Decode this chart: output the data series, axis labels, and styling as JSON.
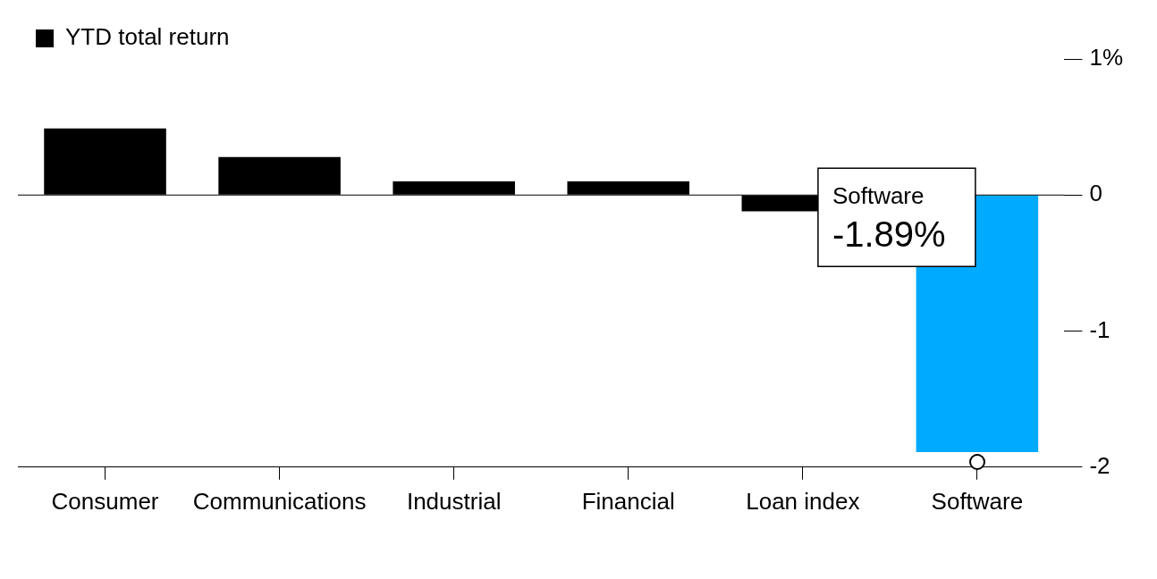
{
  "chart_data": {
    "type": "bar",
    "categories": [
      "Consumer",
      "Communications",
      "Industrial",
      "Financial",
      "Loan index",
      "Software"
    ],
    "series": [
      {
        "name": "YTD total return",
        "color": "#000000",
        "colors": [
          "#000000",
          "#000000",
          "#000000",
          "#000000",
          "#000000",
          "#00aaff"
        ],
        "values": [
          0.49,
          0.28,
          0.1,
          0.1,
          -0.12,
          -1.89
        ]
      }
    ],
    "ylim": [
      -2,
      1
    ],
    "yticks": [
      {
        "value": 1,
        "label": "1%"
      },
      0,
      -1,
      -2
    ],
    "grid": false,
    "legend": "top left",
    "ref_lines": [
      {
        "axis": "y",
        "value": 0,
        "color": "#000000"
      }
    ],
    "annotations": [
      "Software\n-1.89%"
    ]
  }
}
